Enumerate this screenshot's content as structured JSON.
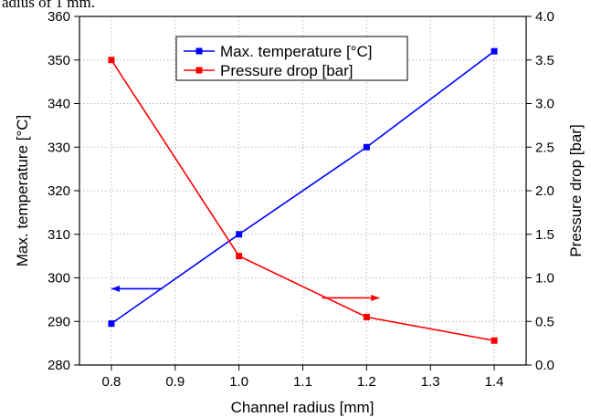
{
  "caption_fragment": "adius of 1 mm.",
  "chart_data": {
    "type": "line",
    "title": "",
    "xlabel": "Channel radius [mm]",
    "ylabel": "Max. temperature [°C]",
    "y2label": "Pressure drop [bar]",
    "xlim": [
      0.75,
      1.45
    ],
    "ylim": [
      280,
      360
    ],
    "y2lim": [
      0.0,
      4.0
    ],
    "xticks": [
      "0.8",
      "0.9",
      "1.0",
      "1.1",
      "1.2",
      "1.3",
      "1.4"
    ],
    "yticks": [
      "280",
      "290",
      "300",
      "310",
      "320",
      "330",
      "340",
      "350",
      "360"
    ],
    "y2ticks": [
      "0.0",
      "0.5",
      "1.0",
      "1.5",
      "2.0",
      "2.5",
      "3.0",
      "3.5",
      "4.0"
    ],
    "grid": true,
    "legend_position": "top-center",
    "series": [
      {
        "name": "Max. temperature [°C]",
        "axis": "left",
        "color": "#0000ff",
        "x": [
          0.8,
          1.0,
          1.2,
          1.4
        ],
        "y": [
          289.5,
          310,
          330,
          352
        ]
      },
      {
        "name": "Pressure drop [bar]",
        "axis": "right",
        "color": "#ff0000",
        "x": [
          0.8,
          1.0,
          1.2,
          1.4
        ],
        "y": [
          3.5,
          1.25,
          0.55,
          0.28
        ]
      }
    ],
    "annotations": [
      {
        "kind": "arrow",
        "series": "Max. temperature [°C]",
        "direction": "left",
        "from": [
          0.88,
          297.5
        ],
        "to": [
          0.8,
          297.5
        ]
      },
      {
        "kind": "arrow",
        "series": "Pressure drop [bar]",
        "direction": "right",
        "from": [
          1.13,
          0.77
        ],
        "to": [
          1.22,
          0.77
        ]
      }
    ]
  }
}
